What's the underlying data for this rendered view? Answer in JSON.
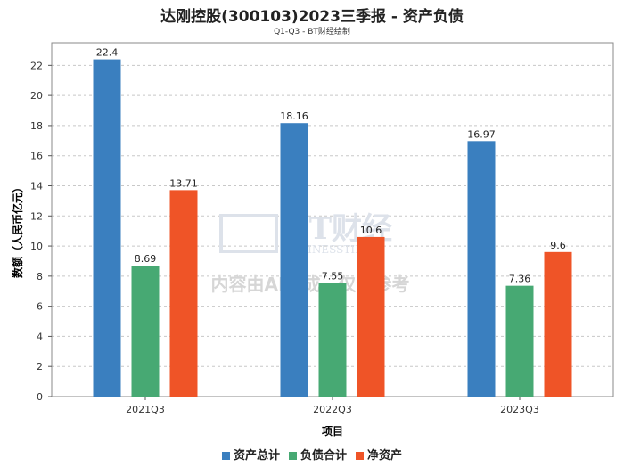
{
  "chart_data": {
    "type": "bar",
    "title": "达刚控股(300103)2023三季报 - 资产负债",
    "subtitle": "Q1-Q3 - BT财经绘制",
    "xlabel": "项目",
    "ylabel": "数额（人民币亿元）",
    "categories": [
      "2021Q3",
      "2022Q3",
      "2023Q3"
    ],
    "series": [
      {
        "name": "资产总计",
        "color": "#3a7fbf",
        "values": [
          22.4,
          18.16,
          16.97
        ]
      },
      {
        "name": "负债合计",
        "color": "#47a973",
        "values": [
          8.69,
          7.55,
          7.36
        ]
      },
      {
        "name": "净资产",
        "color": "#ef5427",
        "values": [
          13.71,
          10.6,
          9.6
        ]
      }
    ],
    "ylim": [
      0,
      23.5
    ],
    "yticks": [
      0,
      2,
      4,
      6,
      8,
      10,
      12,
      14,
      16,
      18,
      20,
      22
    ],
    "grid": true,
    "legend": "bottom-center"
  },
  "watermark": {
    "logo": "BT财经",
    "sub": "BUSINESSTIMES",
    "notice": "内容由AI生成，仅供参考"
  }
}
